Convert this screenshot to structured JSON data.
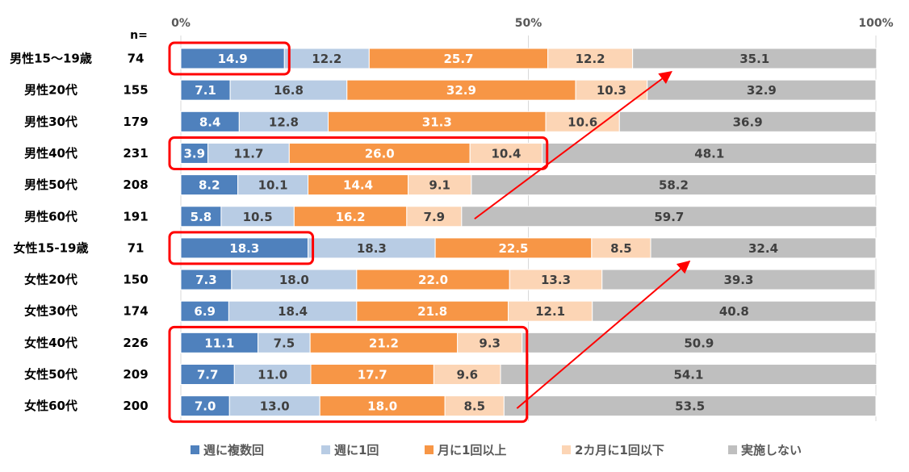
{
  "chart_data": {
    "type": "bar",
    "orientation": "horizontal",
    "stacked": "percent",
    "n_header": "n=",
    "x_ticks": [
      "0%",
      "50%",
      "100%"
    ],
    "xlim": [
      0,
      100
    ],
    "categories": [
      "男性15～19歳",
      "男性20代",
      "男性30代",
      "男性40代",
      "男性50代",
      "男性60代",
      "女性15-19歳",
      "女性20代",
      "女性30代",
      "女性40代",
      "女性50代",
      "女性60代"
    ],
    "n": [
      "74",
      "155",
      "179",
      "231",
      "208",
      "191",
      "71",
      "150",
      "174",
      "226",
      "209",
      "200"
    ],
    "series": [
      {
        "name": "週に複数回",
        "color": "#4f81bd",
        "text_color": "#ffffff",
        "values": [
          14.9,
          7.1,
          8.4,
          3.9,
          8.2,
          5.8,
          18.3,
          7.3,
          6.9,
          11.1,
          7.7,
          7.0
        ]
      },
      {
        "name": "週に1回",
        "color": "#b8cce4",
        "text_color": "#404040",
        "values": [
          12.2,
          16.8,
          12.8,
          11.7,
          10.1,
          10.5,
          18.3,
          18.0,
          18.4,
          7.5,
          11.0,
          13.0
        ]
      },
      {
        "name": "月に1回以上",
        "color": "#f79646",
        "text_color": "#ffffff",
        "values": [
          25.7,
          32.9,
          31.3,
          26.0,
          14.4,
          16.2,
          22.5,
          22.0,
          21.8,
          21.2,
          17.7,
          18.0
        ]
      },
      {
        "name": "2カ月に1回以下",
        "color": "#fcd5b5",
        "text_color": "#404040",
        "values": [
          12.2,
          10.3,
          10.6,
          10.4,
          9.1,
          7.9,
          8.5,
          13.3,
          12.1,
          9.3,
          9.6,
          8.5
        ]
      },
      {
        "name": "実施しない",
        "color": "#bfbfbf",
        "text_color": "#404040",
        "values": [
          35.1,
          32.9,
          36.9,
          48.1,
          58.2,
          59.7,
          32.4,
          39.3,
          40.8,
          50.9,
          54.1,
          53.5
        ]
      }
    ],
    "legend_position": "bottom",
    "highlights": [
      {
        "rows": [
          0,
          0
        ],
        "series": [
          0,
          0
        ],
        "color": "#ff0000"
      },
      {
        "rows": [
          3,
          3
        ],
        "series": [
          0,
          3
        ],
        "color": "#ff0000"
      },
      {
        "rows": [
          6,
          6
        ],
        "series": [
          0,
          0
        ],
        "color": "#ff0000"
      },
      {
        "rows": [
          9,
          11
        ],
        "series": [
          0,
          3
        ],
        "color": "#ff0000"
      }
    ],
    "arrows": [
      {
        "from_row": 5,
        "from_series": 3,
        "to_row": 0,
        "to_series": 4,
        "color": "#ff0000"
      },
      {
        "from_row": 11,
        "from_series": 3,
        "to_row": 6,
        "to_series": 4,
        "color": "#ff0000"
      }
    ]
  }
}
